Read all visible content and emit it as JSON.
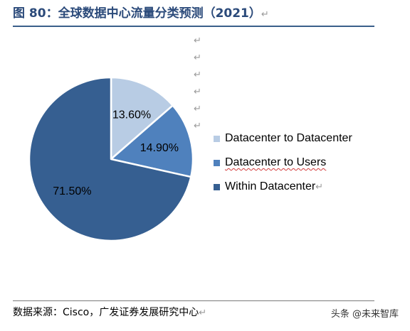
{
  "title": "图 80：全球数据中心流量分类预测（2021）",
  "para_mark": "↵",
  "source": "数据来源：Cisco，广发证券发展研究中心",
  "watermark": "头条 @未来智库",
  "colors": {
    "title": "#2b4a7a",
    "rule": "#3a5f8a"
  },
  "chart_data": {
    "type": "pie",
    "title": "",
    "unit": "%",
    "start_angle_deg": 0,
    "direction": "clockwise",
    "slices": [
      {
        "name": "Datacenter to Datacenter",
        "value": 13.6,
        "label": "13.60%",
        "color": "#b8cce4"
      },
      {
        "name": "Datacenter to Users",
        "value": 14.9,
        "label": "14.90%",
        "color": "#4f81bd"
      },
      {
        "name": "Within Datacenter",
        "value": 71.5,
        "label": "71.50%",
        "color": "#365f91"
      }
    ],
    "legend": {
      "placement": "right",
      "items": [
        {
          "label": "Datacenter to Datacenter",
          "color": "#b8cce4"
        },
        {
          "label": "Datacenter to Users",
          "color": "#4f81bd"
        },
        {
          "label": "Within Datacenter",
          "color": "#365f91"
        }
      ]
    }
  }
}
